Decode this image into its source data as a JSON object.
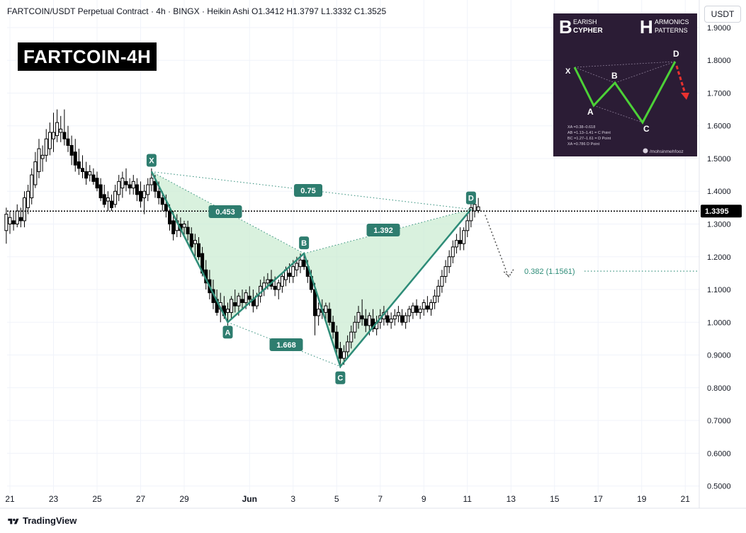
{
  "header": {
    "text": "FARTCOIN/USDT Perpetual Contract · 4h · BINGX · Heikin Ashi   O1.3412  H1.3797  L1.3332  C1.3525"
  },
  "title_badge": "FARTCOIN-4H",
  "currency_button": "USDT",
  "footer": {
    "logo_text": "TradingView"
  },
  "inset": {
    "left_title_big": "B",
    "left_title_line1": "EARISH",
    "left_title_line2": "CYPHER",
    "right_title_big": "H",
    "right_title_line1": "ARMONICS",
    "right_title_line2": "PATTERNS",
    "point_labels": [
      "X",
      "A",
      "B",
      "C",
      "D"
    ],
    "notes": [
      "XA =0.38–0.618",
      "AB =1.13–1.41 = C Point",
      "BC =1.27–1.61 = D Point",
      "XA =0.786 D Point"
    ],
    "handle": "/mohsinmehfooz",
    "accent_line": "#4cd137",
    "arrow_color": "#e8312f"
  },
  "colors": {
    "pattern_line": "#2e8c78",
    "pattern_fill": "#c9ebd0",
    "label_bg": "#2e7d6f",
    "candle_dark": "#000000"
  },
  "chart_data": {
    "type": "candlestick",
    "y_axis": {
      "ticks": [
        1.9,
        1.8,
        1.7,
        1.6,
        1.5,
        1.4,
        1.3,
        1.2,
        1.1,
        1.0,
        0.9,
        0.8,
        0.7,
        0.6,
        0.5
      ],
      "tick_labels": [
        "1.9000",
        "1.8000",
        "1.7000",
        "1.6000",
        "1.5000",
        "1.4000",
        "1.3000",
        "1.2000",
        "1.1000",
        "1.0000",
        "0.9000",
        "0.8000",
        "0.7000",
        "0.6000",
        "0.5000"
      ],
      "range": [
        0.48,
        1.95
      ]
    },
    "x_axis": {
      "tick_labels": [
        "21",
        "23",
        "25",
        "27",
        "29",
        "Jun",
        "3",
        "5",
        "7",
        "9",
        "11",
        "13",
        "15",
        "17",
        "19",
        "21"
      ]
    },
    "last_price": 1.3395,
    "last_price_label": "1.3395",
    "pattern": {
      "points": [
        {
          "name": "X",
          "date": "May 27 12:00",
          "price": 1.46
        },
        {
          "name": "A",
          "date": "May 31 00:00",
          "price": 1.0
        },
        {
          "name": "B",
          "date": "Jun 3 12:00",
          "price": 1.21
        },
        {
          "name": "C",
          "date": "Jun 5 04:00",
          "price": 0.865
        },
        {
          "name": "D",
          "date": "Jun 11 04:00",
          "price": 1.345
        }
      ],
      "ratios": [
        {
          "label": "0.75",
          "from": "X",
          "to": "D"
        },
        {
          "label": "0.453",
          "from": "X",
          "to": "B"
        },
        {
          "label": "1.392",
          "from": "B",
          "to": "D"
        },
        {
          "label": "1.668",
          "from": "A",
          "to": "C"
        }
      ]
    },
    "target": {
      "label": "0.382 (1.1561)",
      "price": 1.1561
    },
    "candles": [
      {
        "date": "May 20 20:00",
        "o": 1.28,
        "h": 1.35,
        "l": 1.24,
        "c": 1.33
      },
      {
        "date": "May 21 00:00",
        "o": 1.3,
        "h": 1.34,
        "l": 1.27,
        "c": 1.32
      },
      {
        "date": "May 21 04:00",
        "o": 1.31,
        "h": 1.34,
        "l": 1.28,
        "c": 1.3
      },
      {
        "date": "May 21 08:00",
        "o": 1.3,
        "h": 1.36,
        "l": 1.29,
        "c": 1.34
      },
      {
        "date": "May 21 12:00",
        "o": 1.32,
        "h": 1.35,
        "l": 1.29,
        "c": 1.31
      },
      {
        "date": "May 21 16:00",
        "o": 1.31,
        "h": 1.4,
        "l": 1.29,
        "c": 1.38
      },
      {
        "date": "May 21 20:00",
        "o": 1.35,
        "h": 1.42,
        "l": 1.33,
        "c": 1.4
      },
      {
        "date": "May 22 00:00",
        "o": 1.38,
        "h": 1.47,
        "l": 1.36,
        "c": 1.45
      },
      {
        "date": "May 22 04:00",
        "o": 1.42,
        "h": 1.52,
        "l": 1.41,
        "c": 1.49
      },
      {
        "date": "May 22 08:00",
        "o": 1.46,
        "h": 1.56,
        "l": 1.44,
        "c": 1.53
      },
      {
        "date": "May 22 12:00",
        "o": 1.5,
        "h": 1.54,
        "l": 1.46,
        "c": 1.51
      },
      {
        "date": "May 22 16:00",
        "o": 1.51,
        "h": 1.59,
        "l": 1.49,
        "c": 1.56
      },
      {
        "date": "May 22 20:00",
        "o": 1.53,
        "h": 1.61,
        "l": 1.51,
        "c": 1.58
      },
      {
        "date": "May 23 00:00",
        "o": 1.56,
        "h": 1.64,
        "l": 1.52,
        "c": 1.58
      },
      {
        "date": "May 23 04:00",
        "o": 1.57,
        "h": 1.65,
        "l": 1.55,
        "c": 1.61
      },
      {
        "date": "May 23 08:00",
        "o": 1.58,
        "h": 1.63,
        "l": 1.55,
        "c": 1.59
      },
      {
        "date": "May 23 12:00",
        "o": 1.58,
        "h": 1.65,
        "l": 1.54,
        "c": 1.56
      },
      {
        "date": "May 23 16:00",
        "o": 1.56,
        "h": 1.6,
        "l": 1.52,
        "c": 1.54
      },
      {
        "date": "May 23 20:00",
        "o": 1.54,
        "h": 1.57,
        "l": 1.48,
        "c": 1.51
      },
      {
        "date": "May 24 00:00",
        "o": 1.52,
        "h": 1.56,
        "l": 1.46,
        "c": 1.48
      },
      {
        "date": "May 24 04:00",
        "o": 1.49,
        "h": 1.53,
        "l": 1.45,
        "c": 1.47
      },
      {
        "date": "May 24 08:00",
        "o": 1.47,
        "h": 1.51,
        "l": 1.44,
        "c": 1.46
      },
      {
        "date": "May 24 12:00",
        "o": 1.46,
        "h": 1.49,
        "l": 1.42,
        "c": 1.44
      },
      {
        "date": "May 24 16:00",
        "o": 1.45,
        "h": 1.48,
        "l": 1.43,
        "c": 1.46
      },
      {
        "date": "May 24 20:00",
        "o": 1.45,
        "h": 1.47,
        "l": 1.42,
        "c": 1.43
      },
      {
        "date": "May 25 00:00",
        "o": 1.44,
        "h": 1.46,
        "l": 1.4,
        "c": 1.41
      },
      {
        "date": "May 25 04:00",
        "o": 1.42,
        "h": 1.44,
        "l": 1.37,
        "c": 1.38
      },
      {
        "date": "May 25 08:00",
        "o": 1.39,
        "h": 1.42,
        "l": 1.35,
        "c": 1.36
      },
      {
        "date": "May 25 12:00",
        "o": 1.37,
        "h": 1.4,
        "l": 1.34,
        "c": 1.38
      },
      {
        "date": "May 25 16:00",
        "o": 1.37,
        "h": 1.39,
        "l": 1.34,
        "c": 1.35
      },
      {
        "date": "May 25 20:00",
        "o": 1.36,
        "h": 1.42,
        "l": 1.35,
        "c": 1.4
      },
      {
        "date": "May 26 00:00",
        "o": 1.39,
        "h": 1.45,
        "l": 1.37,
        "c": 1.43
      },
      {
        "date": "May 26 04:00",
        "o": 1.41,
        "h": 1.46,
        "l": 1.38,
        "c": 1.44
      },
      {
        "date": "May 26 08:00",
        "o": 1.43,
        "h": 1.47,
        "l": 1.4,
        "c": 1.42
      },
      {
        "date": "May 26 12:00",
        "o": 1.42,
        "h": 1.44,
        "l": 1.39,
        "c": 1.41
      },
      {
        "date": "May 26 16:00",
        "o": 1.41,
        "h": 1.45,
        "l": 1.39,
        "c": 1.43
      },
      {
        "date": "May 26 20:00",
        "o": 1.42,
        "h": 1.44,
        "l": 1.37,
        "c": 1.39
      },
      {
        "date": "May 27 00:00",
        "o": 1.4,
        "h": 1.43,
        "l": 1.35,
        "c": 1.37
      },
      {
        "date": "May 27 04:00",
        "o": 1.38,
        "h": 1.42,
        "l": 1.33,
        "c": 1.4
      },
      {
        "date": "May 27 08:00",
        "o": 1.39,
        "h": 1.44,
        "l": 1.37,
        "c": 1.42
      },
      {
        "date": "May 27 12:00",
        "o": 1.42,
        "h": 1.47,
        "l": 1.4,
        "c": 1.44
      },
      {
        "date": "May 27 16:00",
        "o": 1.43,
        "h": 1.45,
        "l": 1.38,
        "c": 1.4
      },
      {
        "date": "May 27 20:00",
        "o": 1.4,
        "h": 1.43,
        "l": 1.36,
        "c": 1.38
      },
      {
        "date": "May 28 00:00",
        "o": 1.38,
        "h": 1.4,
        "l": 1.34,
        "c": 1.36
      },
      {
        "date": "May 28 04:00",
        "o": 1.36,
        "h": 1.39,
        "l": 1.32,
        "c": 1.34
      },
      {
        "date": "May 28 08:00",
        "o": 1.34,
        "h": 1.36,
        "l": 1.28,
        "c": 1.3
      },
      {
        "date": "May 28 12:00",
        "o": 1.31,
        "h": 1.34,
        "l": 1.25,
        "c": 1.27
      },
      {
        "date": "May 28 16:00",
        "o": 1.28,
        "h": 1.33,
        "l": 1.26,
        "c": 1.31
      },
      {
        "date": "May 28 20:00",
        "o": 1.3,
        "h": 1.32,
        "l": 1.26,
        "c": 1.28
      },
      {
        "date": "May 29 00:00",
        "o": 1.29,
        "h": 1.31,
        "l": 1.26,
        "c": 1.3
      },
      {
        "date": "May 29 04:00",
        "o": 1.29,
        "h": 1.31,
        "l": 1.25,
        "c": 1.27
      },
      {
        "date": "May 29 08:00",
        "o": 1.27,
        "h": 1.29,
        "l": 1.22,
        "c": 1.23
      },
      {
        "date": "May 29 12:00",
        "o": 1.24,
        "h": 1.27,
        "l": 1.2,
        "c": 1.25
      },
      {
        "date": "May 29 16:00",
        "o": 1.24,
        "h": 1.26,
        "l": 1.19,
        "c": 1.2
      },
      {
        "date": "May 29 20:00",
        "o": 1.21,
        "h": 1.23,
        "l": 1.14,
        "c": 1.15
      },
      {
        "date": "May 30 00:00",
        "o": 1.16,
        "h": 1.19,
        "l": 1.1,
        "c": 1.12
      },
      {
        "date": "May 30 04:00",
        "o": 1.13,
        "h": 1.16,
        "l": 1.07,
        "c": 1.09
      },
      {
        "date": "May 30 08:00",
        "o": 1.1,
        "h": 1.13,
        "l": 1.04,
        "c": 1.06
      },
      {
        "date": "May 30 12:00",
        "o": 1.07,
        "h": 1.1,
        "l": 1.02,
        "c": 1.03
      },
      {
        "date": "May 30 16:00",
        "o": 1.04,
        "h": 1.09,
        "l": 1.0,
        "c": 1.06
      },
      {
        "date": "May 30 20:00",
        "o": 1.05,
        "h": 1.08,
        "l": 1.01,
        "c": 1.02
      },
      {
        "date": "May 31 00:00",
        "o": 1.03,
        "h": 1.06,
        "l": 0.99,
        "c": 1.04
      },
      {
        "date": "May 31 04:00",
        "o": 1.03,
        "h": 1.08,
        "l": 1.01,
        "c": 1.07
      },
      {
        "date": "May 31 08:00",
        "o": 1.06,
        "h": 1.1,
        "l": 1.03,
        "c": 1.05
      },
      {
        "date": "May 31 12:00",
        "o": 1.05,
        "h": 1.09,
        "l": 1.02,
        "c": 1.08
      },
      {
        "date": "May 31 16:00",
        "o": 1.07,
        "h": 1.1,
        "l": 1.04,
        "c": 1.06
      },
      {
        "date": "May 31 20:00",
        "o": 1.06,
        "h": 1.1,
        "l": 1.04,
        "c": 1.09
      },
      {
        "date": "Jun 1 00:00",
        "o": 1.08,
        "h": 1.11,
        "l": 1.05,
        "c": 1.07
      },
      {
        "date": "Jun 1 04:00",
        "o": 1.07,
        "h": 1.1,
        "l": 1.03,
        "c": 1.05
      },
      {
        "date": "Jun 1 08:00",
        "o": 1.05,
        "h": 1.09,
        "l": 1.04,
        "c": 1.08
      },
      {
        "date": "Jun 1 12:00",
        "o": 1.08,
        "h": 1.13,
        "l": 1.06,
        "c": 1.11
      },
      {
        "date": "Jun 1 16:00",
        "o": 1.1,
        "h": 1.14,
        "l": 1.08,
        "c": 1.12
      },
      {
        "date": "Jun 1 20:00",
        "o": 1.12,
        "h": 1.15,
        "l": 1.1,
        "c": 1.13
      },
      {
        "date": "Jun 2 00:00",
        "o": 1.13,
        "h": 1.16,
        "l": 1.1,
        "c": 1.11
      },
      {
        "date": "Jun 2 04:00",
        "o": 1.11,
        "h": 1.14,
        "l": 1.08,
        "c": 1.1
      },
      {
        "date": "Jun 2 08:00",
        "o": 1.1,
        "h": 1.13,
        "l": 1.07,
        "c": 1.12
      },
      {
        "date": "Jun 2 12:00",
        "o": 1.11,
        "h": 1.15,
        "l": 1.09,
        "c": 1.14
      },
      {
        "date": "Jun 2 16:00",
        "o": 1.13,
        "h": 1.17,
        "l": 1.11,
        "c": 1.16
      },
      {
        "date": "Jun 2 20:00",
        "o": 1.15,
        "h": 1.18,
        "l": 1.12,
        "c": 1.14
      },
      {
        "date": "Jun 3 00:00",
        "o": 1.14,
        "h": 1.19,
        "l": 1.12,
        "c": 1.17
      },
      {
        "date": "Jun 3 04:00",
        "o": 1.16,
        "h": 1.2,
        "l": 1.14,
        "c": 1.18
      },
      {
        "date": "Jun 3 08:00",
        "o": 1.17,
        "h": 1.21,
        "l": 1.15,
        "c": 1.19
      },
      {
        "date": "Jun 3 12:00",
        "o": 1.19,
        "h": 1.21,
        "l": 1.16,
        "c": 1.17
      },
      {
        "date": "Jun 3 16:00",
        "o": 1.17,
        "h": 1.19,
        "l": 1.12,
        "c": 1.14
      },
      {
        "date": "Jun 3 20:00",
        "o": 1.14,
        "h": 1.16,
        "l": 1.09,
        "c": 1.1
      },
      {
        "date": "Jun 4 00:00",
        "o": 1.1,
        "h": 1.12,
        "l": 0.96,
        "c": 1.02
      },
      {
        "date": "Jun 4 04:00",
        "o": 1.02,
        "h": 1.06,
        "l": 0.99,
        "c": 1.04
      },
      {
        "date": "Jun 4 08:00",
        "o": 1.04,
        "h": 1.07,
        "l": 1.01,
        "c": 1.03
      },
      {
        "date": "Jun 4 12:00",
        "o": 1.03,
        "h": 1.06,
        "l": 1.0,
        "c": 1.05
      },
      {
        "date": "Jun 4 16:00",
        "o": 1.04,
        "h": 1.06,
        "l": 0.99,
        "c": 1.0
      },
      {
        "date": "Jun 4 20:00",
        "o": 1.0,
        "h": 1.02,
        "l": 0.95,
        "c": 0.97
      },
      {
        "date": "Jun 5 00:00",
        "o": 0.97,
        "h": 0.99,
        "l": 0.9,
        "c": 0.92
      },
      {
        "date": "Jun 5 04:00",
        "o": 0.92,
        "h": 0.94,
        "l": 0.86,
        "c": 0.89
      },
      {
        "date": "Jun 5 08:00",
        "o": 0.89,
        "h": 0.93,
        "l": 0.87,
        "c": 0.91
      },
      {
        "date": "Jun 5 12:00",
        "o": 0.91,
        "h": 0.96,
        "l": 0.89,
        "c": 0.94
      },
      {
        "date": "Jun 5 16:00",
        "o": 0.94,
        "h": 0.99,
        "l": 0.92,
        "c": 0.97
      },
      {
        "date": "Jun 5 20:00",
        "o": 0.97,
        "h": 1.02,
        "l": 0.95,
        "c": 1.0
      },
      {
        "date": "Jun 6 00:00",
        "o": 1.0,
        "h": 1.05,
        "l": 0.98,
        "c": 1.03
      },
      {
        "date": "Jun 6 04:00",
        "o": 1.02,
        "h": 1.07,
        "l": 0.99,
        "c": 1.01
      },
      {
        "date": "Jun 6 08:00",
        "o": 1.01,
        "h": 1.04,
        "l": 0.97,
        "c": 0.99
      },
      {
        "date": "Jun 6 12:00",
        "o": 0.99,
        "h": 1.03,
        "l": 0.96,
        "c": 1.02
      },
      {
        "date": "Jun 6 16:00",
        "o": 1.01,
        "h": 1.04,
        "l": 0.97,
        "c": 0.98
      },
      {
        "date": "Jun 6 20:00",
        "o": 0.98,
        "h": 1.02,
        "l": 0.96,
        "c": 1.0
      },
      {
        "date": "Jun 7 00:00",
        "o": 1.0,
        "h": 1.04,
        "l": 0.98,
        "c": 1.02
      },
      {
        "date": "Jun 7 04:00",
        "o": 1.01,
        "h": 1.05,
        "l": 0.99,
        "c": 1.03
      },
      {
        "date": "Jun 7 08:00",
        "o": 1.02,
        "h": 1.04,
        "l": 0.99,
        "c": 1.0
      },
      {
        "date": "Jun 7 12:00",
        "o": 1.0,
        "h": 1.03,
        "l": 0.98,
        "c": 1.01
      },
      {
        "date": "Jun 7 16:00",
        "o": 1.01,
        "h": 1.04,
        "l": 0.99,
        "c": 1.02
      },
      {
        "date": "Jun 7 20:00",
        "o": 1.02,
        "h": 1.05,
        "l": 1.0,
        "c": 1.03
      },
      {
        "date": "Jun 8 00:00",
        "o": 1.02,
        "h": 1.04,
        "l": 0.99,
        "c": 1.0
      },
      {
        "date": "Jun 8 04:00",
        "o": 1.0,
        "h": 1.03,
        "l": 0.98,
        "c": 1.02
      },
      {
        "date": "Jun 8 08:00",
        "o": 1.02,
        "h": 1.05,
        "l": 1.0,
        "c": 1.04
      },
      {
        "date": "Jun 8 12:00",
        "o": 1.03,
        "h": 1.06,
        "l": 1.01,
        "c": 1.05
      },
      {
        "date": "Jun 8 16:00",
        "o": 1.05,
        "h": 1.07,
        "l": 1.02,
        "c": 1.03
      },
      {
        "date": "Jun 8 20:00",
        "o": 1.03,
        "h": 1.05,
        "l": 1.01,
        "c": 1.04
      },
      {
        "date": "Jun 9 00:00",
        "o": 1.04,
        "h": 1.07,
        "l": 1.02,
        "c": 1.06
      },
      {
        "date": "Jun 9 04:00",
        "o": 1.05,
        "h": 1.08,
        "l": 1.03,
        "c": 1.04
      },
      {
        "date": "Jun 9 08:00",
        "o": 1.04,
        "h": 1.07,
        "l": 1.02,
        "c": 1.06
      },
      {
        "date": "Jun 9 12:00",
        "o": 1.06,
        "h": 1.1,
        "l": 1.04,
        "c": 1.08
      },
      {
        "date": "Jun 9 16:00",
        "o": 1.08,
        "h": 1.13,
        "l": 1.06,
        "c": 1.11
      },
      {
        "date": "Jun 9 20:00",
        "o": 1.11,
        "h": 1.16,
        "l": 1.09,
        "c": 1.14
      },
      {
        "date": "Jun 10 00:00",
        "o": 1.14,
        "h": 1.19,
        "l": 1.12,
        "c": 1.17
      },
      {
        "date": "Jun 10 04:00",
        "o": 1.17,
        "h": 1.22,
        "l": 1.15,
        "c": 1.2
      },
      {
        "date": "Jun 10 08:00",
        "o": 1.2,
        "h": 1.25,
        "l": 1.18,
        "c": 1.23
      },
      {
        "date": "Jun 10 12:00",
        "o": 1.23,
        "h": 1.27,
        "l": 1.21,
        "c": 1.25
      },
      {
        "date": "Jun 10 16:00",
        "o": 1.25,
        "h": 1.29,
        "l": 1.22,
        "c": 1.24
      },
      {
        "date": "Jun 10 20:00",
        "o": 1.24,
        "h": 1.29,
        "l": 1.22,
        "c": 1.28
      },
      {
        "date": "Jun 11 00:00",
        "o": 1.28,
        "h": 1.33,
        "l": 1.26,
        "c": 1.31
      },
      {
        "date": "Jun 11 04:00",
        "o": 1.31,
        "h": 1.37,
        "l": 1.29,
        "c": 1.35
      },
      {
        "date": "Jun 11 08:00",
        "o": 1.34,
        "h": 1.38,
        "l": 1.32,
        "c": 1.36
      },
      {
        "date": "Jun 11 12:00",
        "o": 1.3412,
        "h": 1.3797,
        "l": 1.3332,
        "c": 1.3525
      }
    ]
  }
}
